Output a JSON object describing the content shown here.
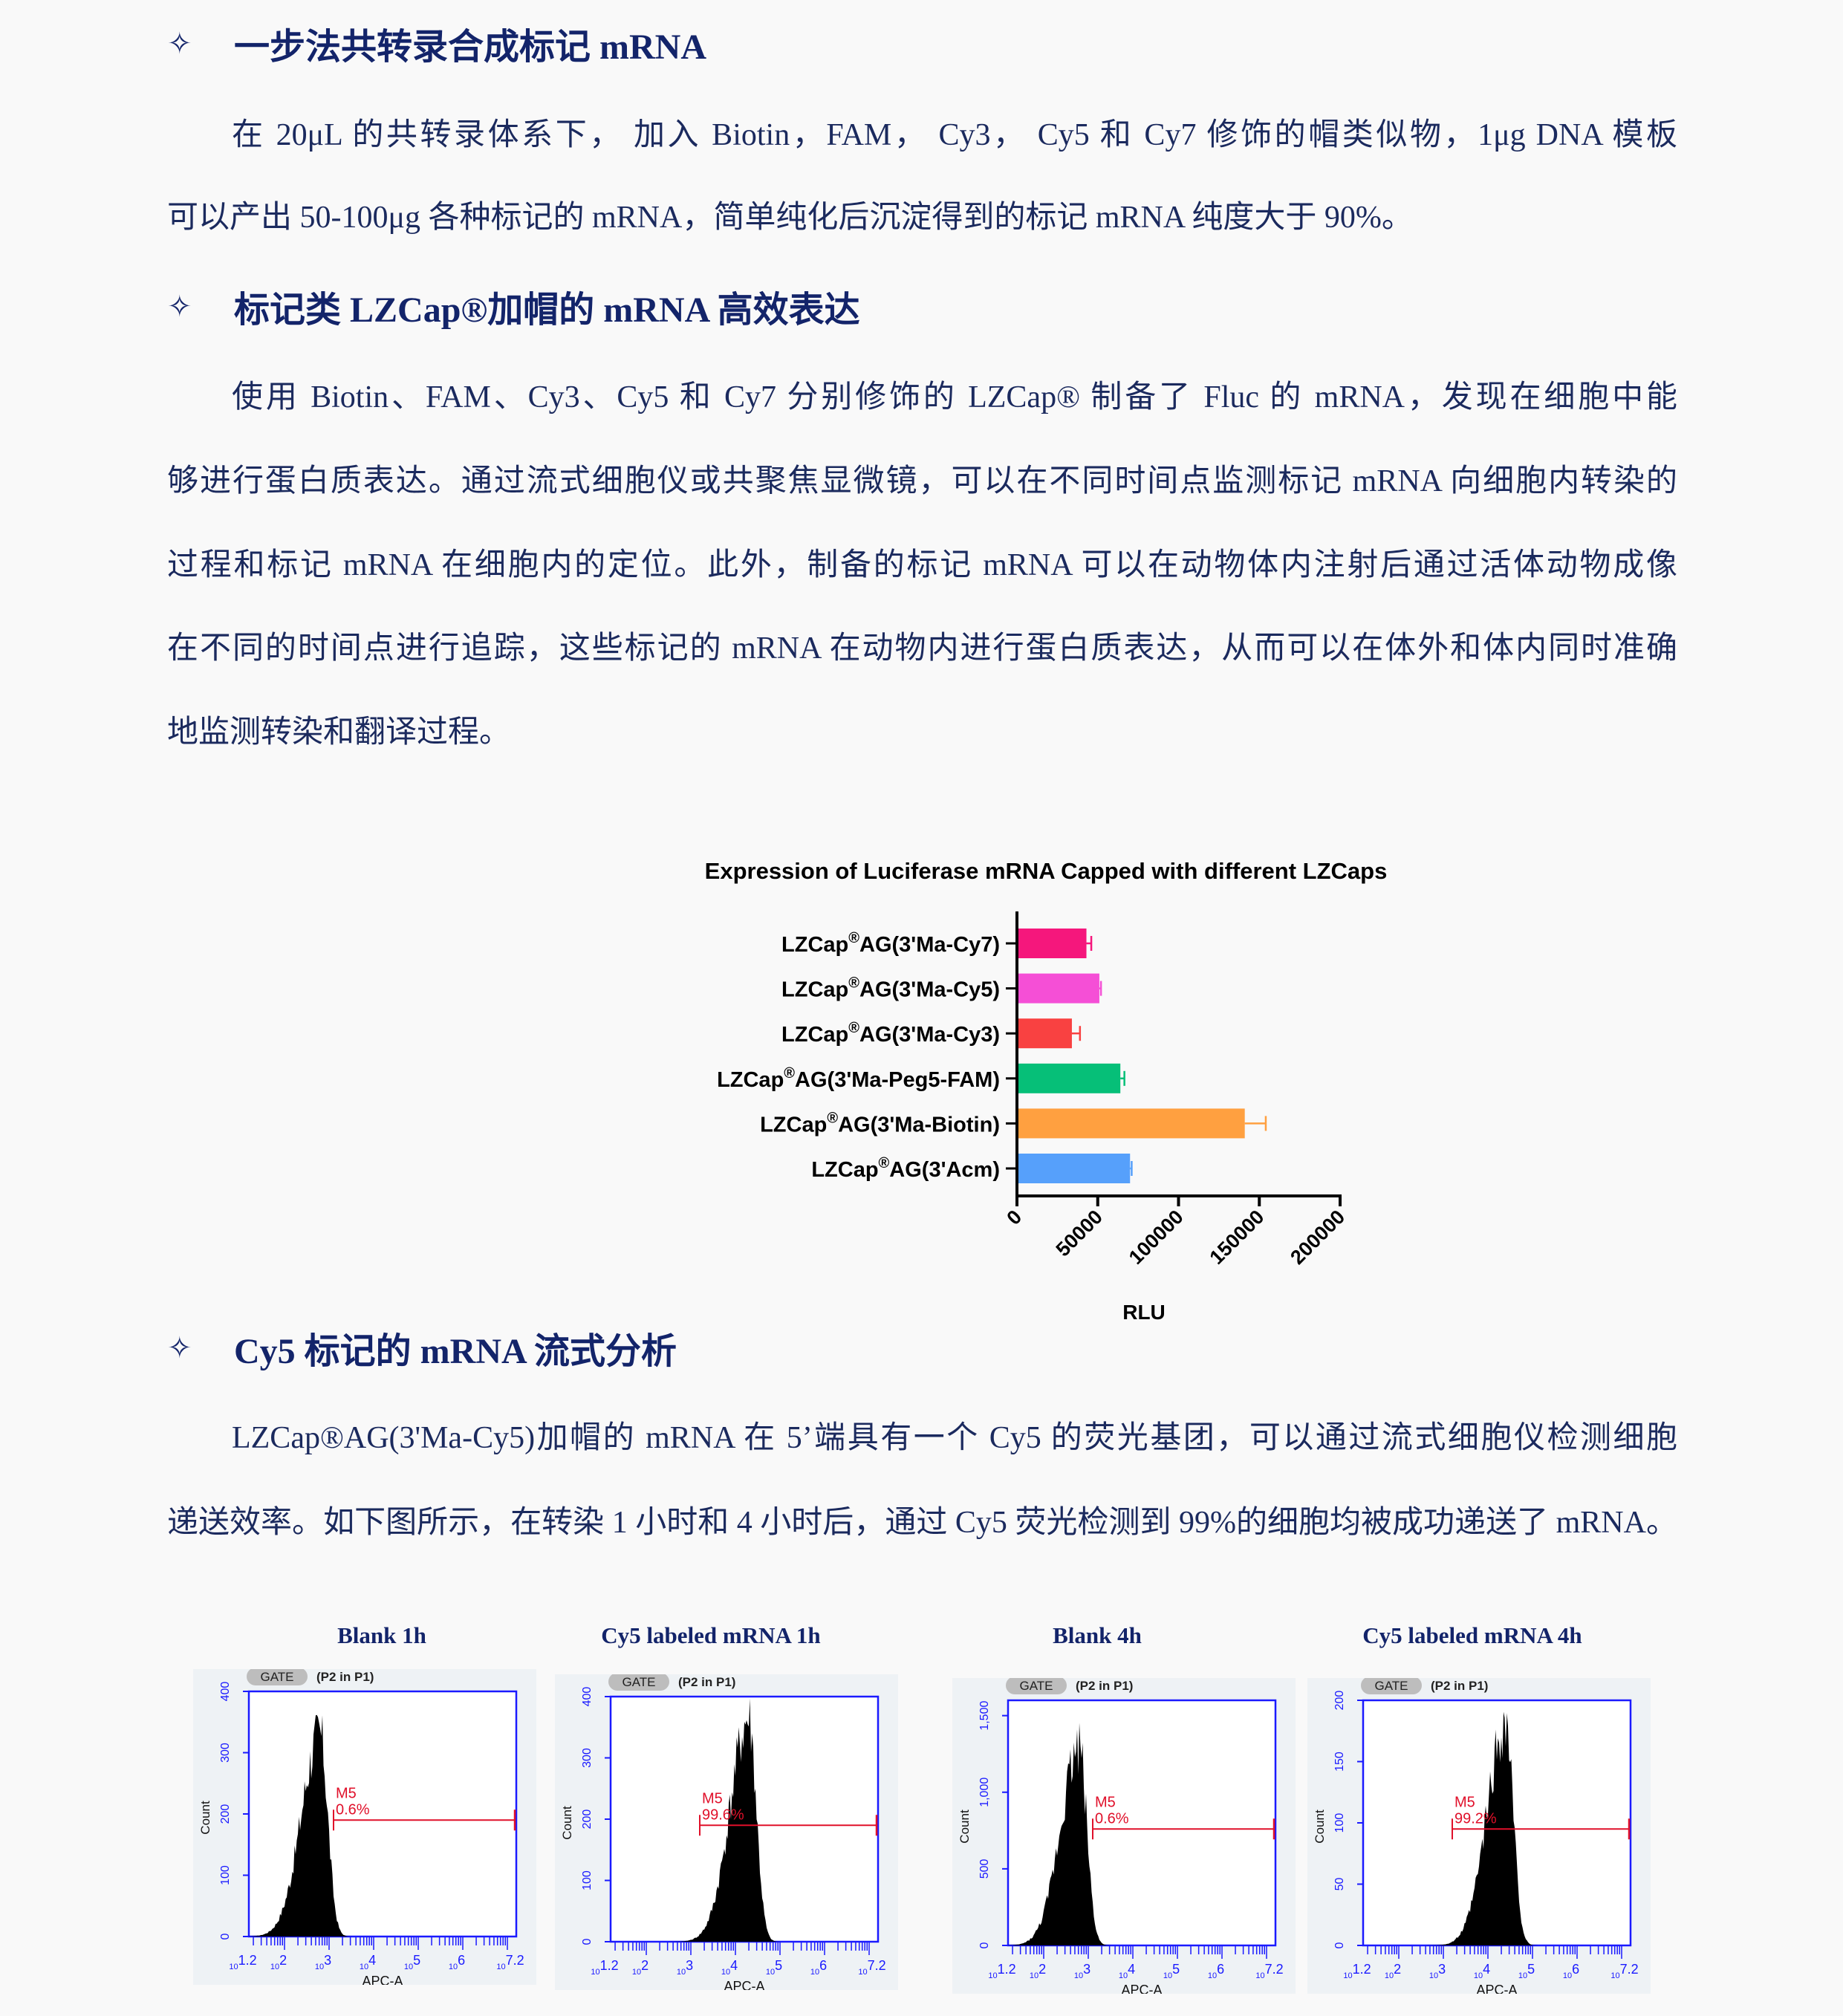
{
  "section1": {
    "bullet_icon": "four-point-star-outline",
    "title": "一步法共转录合成标记 mRNA",
    "lines": [
      "在 20μL 的共转录体系下， 加入 Biotin，FAM， Cy3， Cy5 和 Cy7 修饰的帽类似物，1μg DNA 模板",
      "可以产出 50-100μg 各种标记的 mRNA，简单纯化后沉淀得到的标记 mRNA 纯度大于 90%。"
    ]
  },
  "section2": {
    "bullet_icon": "four-point-star-outline",
    "title": "标记类 LZCap®加帽的 mRNA 高效表达",
    "lines": [
      "使用 Biotin、FAM、Cy3、Cy5 和 Cy7 分别修饰的 LZCap® 制备了 Fluc 的 mRNA，发现在细胞中能",
      "够进行蛋白质表达。通过流式细胞仪或共聚焦显微镜，可以在不同时间点监测标记 mRNA 向细胞内转染的",
      "过程和标记 mRNA 在细胞内的定位。此外，制备的标记 mRNA 可以在动物体内注射后通过活体动物成像",
      "在不同的时间点进行追踪，这些标记的 mRNA 在动物内进行蛋白质表达，从而可以在体外和体内同时准确",
      "地监测转染和翻译过程。"
    ]
  },
  "section3": {
    "bullet_icon": "four-point-star-outline",
    "title": "Cy5 标记的 mRNA 流式分析",
    "lines": [
      "LZCap®AG(3'Ma-Cy5)加帽的 mRNA 在 5’端具有一个 Cy5 的荧光基团，可以通过流式细胞仪检测细胞",
      "递送效率。如下图所示，在转染 1 小时和 4 小时后，通过 Cy5 荧光检测到 99%的细胞均被成功递送了 mRNA。"
    ]
  },
  "chart_data": [
    {
      "type": "bar",
      "orientation": "horizontal",
      "title": "Expression of Luciferase mRNA Capped with different LZCaps",
      "xlabel": "RLU",
      "ylabel": "",
      "xlim": [
        0,
        200000
      ],
      "xticks": [
        "0",
        "50000",
        "100000",
        "150000",
        "200000"
      ],
      "grid": false,
      "categories": [
        "LZCap®AG(3'Ma-Cy7)",
        "LZCap®AG(3'Ma-Cy5)",
        "LZCap®AG(3'Ma-Cy3)",
        "LZCap®AG(3'Ma-Peg5-FAM)",
        "LZCap®AG(3'Ma-Biotin)",
        "LZCap®AG(3'Acm)"
      ],
      "values": [
        43000,
        51000,
        34000,
        64000,
        141000,
        70000
      ],
      "errors": [
        3000,
        1000,
        5000,
        2500,
        13000,
        1000
      ],
      "colors": [
        "#f5177c",
        "#f54fd6",
        "#f94141",
        "#06bf78",
        "#ffa040",
        "#56a0fb"
      ]
    },
    {
      "type": "histogram",
      "title": "Blank 1h",
      "gate_label": "GATE",
      "gate_source": "(P2 in P1)",
      "xlabel": "APC-A",
      "ylabel": "Count",
      "xscale": "log",
      "xlim_log10": [
        1.2,
        7.2
      ],
      "xticks": [
        "1.2",
        "2",
        "3",
        "4",
        "5",
        "6",
        "7.2"
      ],
      "yticks": [
        "0",
        "100",
        "200",
        "300",
        "400"
      ],
      "ylim": [
        0,
        400
      ],
      "marker": "M5",
      "marker_percent": "0.6%",
      "marker_start_log10": 3.1,
      "marker_level": 190,
      "peak_log10": 2.8,
      "peak_count": 330
    },
    {
      "type": "histogram",
      "title": "Cy5 labeled mRNA 1h",
      "gate_label": "GATE",
      "gate_source": "(P2 in P1)",
      "xlabel": "APC-A",
      "ylabel": "Count",
      "xscale": "log",
      "xlim_log10": [
        1.2,
        7.2
      ],
      "xticks": [
        "1.2",
        "2",
        "3",
        "4",
        "5",
        "6",
        "7.2"
      ],
      "yticks": [
        "0",
        "100",
        "200",
        "300",
        "400"
      ],
      "ylim": [
        0,
        400
      ],
      "marker": "M5",
      "marker_percent": "99.6%",
      "marker_start_log10": 3.2,
      "marker_level": 190,
      "peak_log10": 4.3,
      "peak_count": 360
    },
    {
      "type": "histogram",
      "title": "Blank 4h",
      "gate_label": "GATE",
      "gate_source": "(P2 in P1)",
      "xlabel": "APC-A",
      "ylabel": "Count",
      "xscale": "log",
      "xlim_log10": [
        1.2,
        7.2
      ],
      "xticks": [
        "1.2",
        "2",
        "3",
        "4",
        "5",
        "6",
        "7.2"
      ],
      "yticks": [
        "0",
        "500",
        "1,000",
        "1,500"
      ],
      "ylim": [
        0,
        1600
      ],
      "marker": "M5",
      "marker_percent": "0.6%",
      "marker_start_log10": 3.1,
      "marker_level": 760,
      "peak_log10": 2.8,
      "peak_count": 1300
    },
    {
      "type": "histogram",
      "title": "Cy5 labeled mRNA 4h",
      "gate_label": "GATE",
      "gate_source": "(P2 in P1)",
      "xlabel": "APC-A",
      "ylabel": "Count",
      "xscale": "log",
      "xlim_log10": [
        1.2,
        7.2
      ],
      "xticks": [
        "1.2",
        "2",
        "3",
        "4",
        "5",
        "6",
        "7.2"
      ],
      "yticks": [
        "0",
        "50",
        "100",
        "150",
        "200"
      ],
      "ylim": [
        0,
        200
      ],
      "marker": "M5",
      "marker_percent": "99.2%",
      "marker_start_log10": 3.2,
      "marker_level": 95,
      "peak_log10": 4.4,
      "peak_count": 180
    }
  ]
}
